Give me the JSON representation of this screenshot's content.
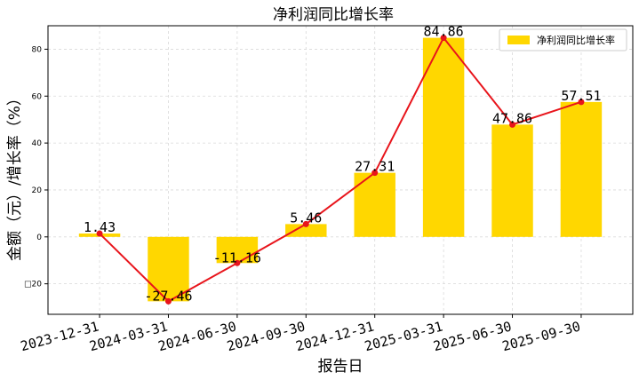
{
  "chart_data": {
    "type": "bar",
    "title": "净利润同比增长率",
    "xlabel": "报告日",
    "ylabel": "金额（元）/增长率（%）",
    "categories": [
      "2023-12-31",
      "2024-03-31",
      "2024-06-30",
      "2024-09-30",
      "2024-12-31",
      "2025-03-31",
      "2025-06-30",
      "2025-09-30"
    ],
    "series": [
      {
        "name": "净利润同比增长率",
        "type": "bar",
        "color": "#FFD700",
        "values": [
          1.43,
          -27.46,
          -11.16,
          5.46,
          27.31,
          84.86,
          47.86,
          57.51
        ]
      },
      {
        "type": "line",
        "color": "#E8141B",
        "values": [
          1.43,
          -27.46,
          -11.16,
          5.46,
          27.31,
          84.86,
          47.86,
          57.51
        ]
      }
    ],
    "data_labels": [
      "1.43",
      "-27.46",
      "-11.16",
      "5.46",
      "27.31",
      "84.86",
      "47.86",
      "57.51"
    ],
    "yticks": [
      -20,
      0,
      20,
      40,
      60,
      80
    ],
    "ytick_labels": [
      "□20",
      "0",
      "20",
      "40",
      "60",
      "80"
    ],
    "ylim": [
      -33,
      90
    ],
    "grid": true,
    "legend": "top-right"
  }
}
